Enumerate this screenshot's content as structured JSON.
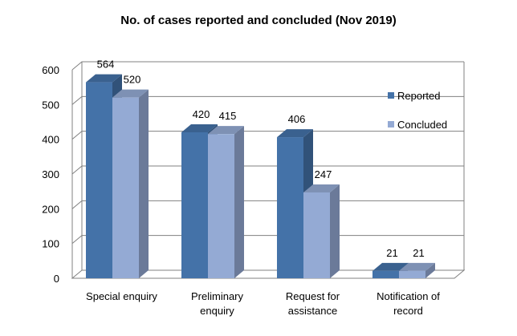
{
  "chart_data": {
    "type": "bar",
    "title": "No. of cases reported and concluded (Nov 2019)",
    "categories": [
      "Special enquiry",
      "Preliminary enquiry",
      "Request for assistance",
      "Notification of record"
    ],
    "category_lines": [
      [
        "Special enquiry"
      ],
      [
        "Preliminary",
        "enquiry"
      ],
      [
        "Request for",
        "assistance"
      ],
      [
        "Notification of",
        "record"
      ]
    ],
    "series": [
      {
        "name": "Reported",
        "values": [
          564,
          420,
          406,
          21
        ],
        "color": "#4472A8"
      },
      {
        "name": "Concluded",
        "values": [
          520,
          415,
          247,
          21
        ],
        "color": "#94AAD4"
      }
    ],
    "y_ticks": [
      0,
      100,
      200,
      300,
      400,
      500,
      600
    ],
    "ylim": [
      0,
      600
    ],
    "grid": true,
    "legend_position": "right",
    "style_3d": true
  }
}
